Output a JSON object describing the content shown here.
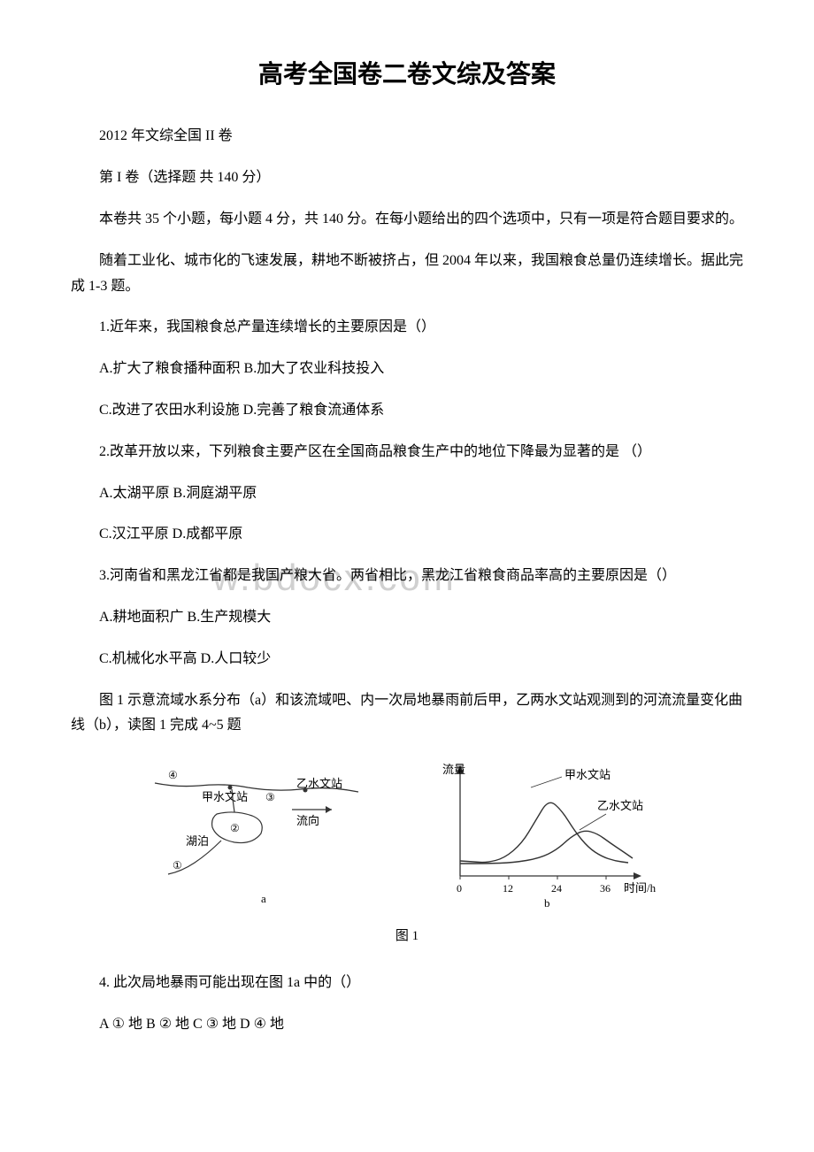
{
  "title": "高考全国卷二卷文综及答案",
  "subtitle": "2012 年文综全国 II 卷",
  "section_header": "第 I 卷（选择题 共 140 分）",
  "instructions": "本卷共 35 个小题，每小题 4 分，共 140 分。在每小题给出的四个选项中，只有一项是符合题目要求的。",
  "passage_1": "随着工业化、城市化的飞速发展，耕地不断被挤占，但 2004 年以来，我国粮食总量仍连续增长。据此完成 1-3 题。",
  "q1": "1.近年来，我国粮食总产量连续增长的主要原因是（）",
  "q1_optA": "A.扩大了粮食播种面积   B.加大了农业科技投入",
  "q1_optC": "C.改进了农田水利设施   D.完善了粮食流通体系",
  "q2": "2.改革开放以来，下列粮食主要产区在全国商品粮食生产中的地位下降最为显著的是 （）",
  "q2_optA": "A.太湖平原   B.洞庭湖平原",
  "q2_optC": "C.汉江平原   D.成都平原",
  "q3": "3.河南省和黑龙江省都是我国产粮大省。两省相比，黑龙江省粮食商品率高的主要原因是（）",
  "q3_optA": "A.耕地面积广   B.生产规模大",
  "q3_optC": "C.机械化水平高   D.人口较少",
  "passage_2": "图 1 示意流域水系分布（a）和该流域吧、内一次局地暴雨前后甲，乙两水文站观测到的河流流量变化曲线（b），读图 1 完成 4~5 题",
  "figure_caption": "图 1",
  "q4": "4. 此次局地暴雨可能出现在图 1a 中的（）",
  "q4_options": "A ① 地  B  ② 地  C ③  地   D  ④ 地",
  "watermark_text": "w.bdocx.com",
  "diagram_a": {
    "station_jia": "甲水文站",
    "station_yi": "乙水文站",
    "flow_direction": "流向",
    "lake": "湖泊",
    "label_a": "a",
    "markers": [
      "①",
      "②",
      "③",
      "④"
    ],
    "colors": {
      "stroke": "#333333",
      "fill_none": "none"
    }
  },
  "diagram_b": {
    "y_label": "流量",
    "x_label": "时间/h",
    "station_jia": "甲水文站",
    "station_yi": "乙水文站",
    "label_b": "b",
    "x_ticks": [
      "0",
      "12",
      "24",
      "36"
    ],
    "curves": {
      "jia_points": [
        [
          0,
          15
        ],
        [
          15,
          14
        ],
        [
          30,
          13
        ],
        [
          50,
          18
        ],
        [
          70,
          35
        ],
        [
          85,
          60
        ],
        [
          100,
          85
        ],
        [
          115,
          72
        ],
        [
          130,
          48
        ],
        [
          145,
          30
        ],
        [
          160,
          20
        ],
        [
          175,
          15
        ],
        [
          190,
          13
        ]
      ],
      "yi_points": [
        [
          0,
          12
        ],
        [
          30,
          12
        ],
        [
          60,
          13
        ],
        [
          90,
          18
        ],
        [
          110,
          28
        ],
        [
          125,
          42
        ],
        [
          140,
          50
        ],
        [
          155,
          46
        ],
        [
          170,
          35
        ],
        [
          185,
          25
        ],
        [
          195,
          18
        ]
      ]
    },
    "colors": {
      "axis": "#333333",
      "curve": "#333333"
    }
  }
}
